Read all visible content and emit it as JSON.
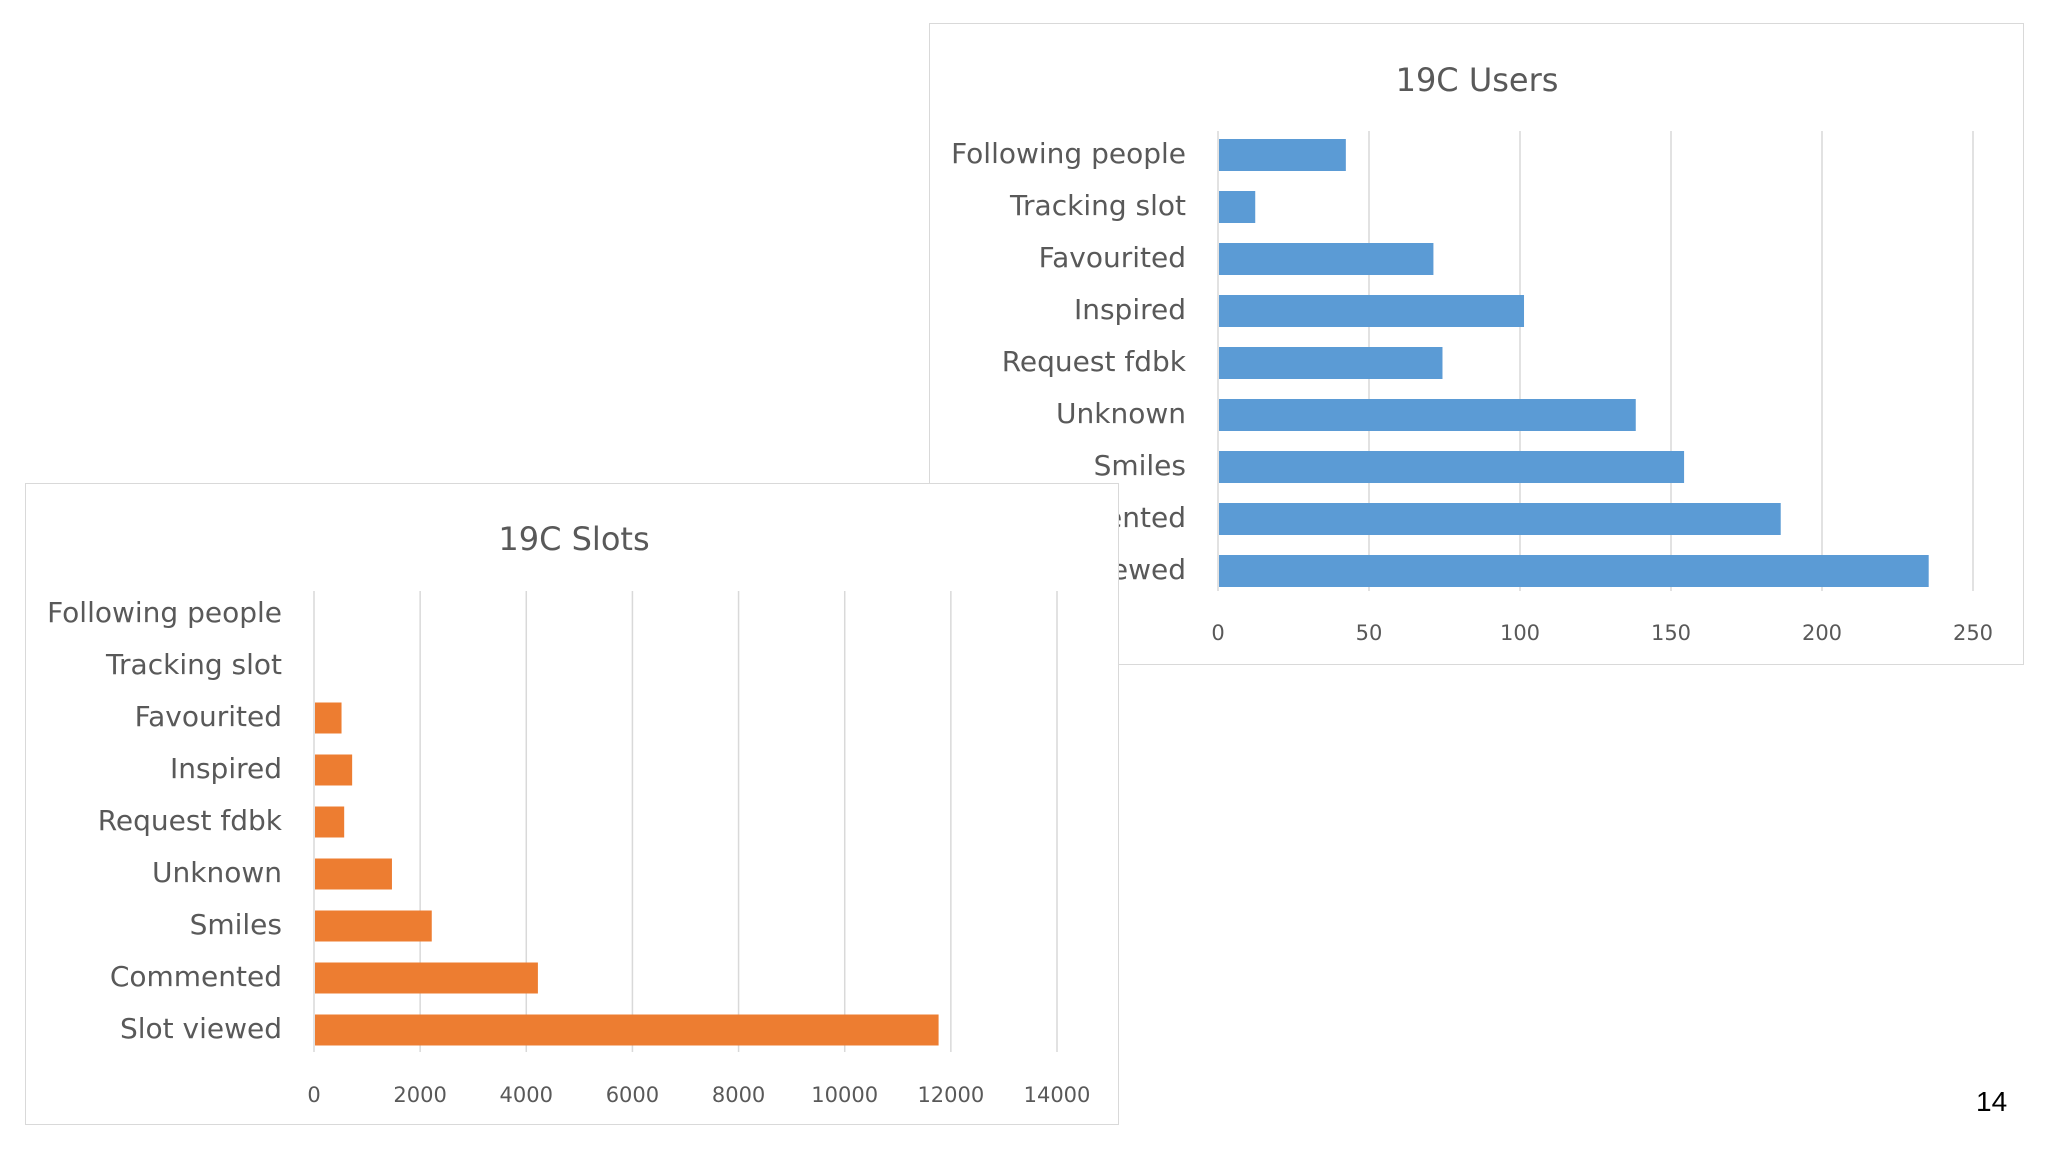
{
  "page_number": "14",
  "chart_data": [
    {
      "id": "slots",
      "type": "bar",
      "orientation": "horizontal",
      "title": "19C Slots",
      "categories": [
        "Following people",
        "Tracking slot",
        "Favourited",
        "Inspired",
        "Request fdbk",
        "Unknown",
        "Smiles",
        "Commented",
        "Slot viewed"
      ],
      "values": [
        0,
        0,
        500,
        700,
        550,
        1450,
        2200,
        4200,
        11750
      ],
      "xlim": [
        0,
        14000
      ],
      "xticks": [
        0,
        2000,
        4000,
        6000,
        8000,
        10000,
        12000,
        14000
      ],
      "grid": "vertical",
      "color": "#ED7D31"
    },
    {
      "id": "users",
      "type": "bar",
      "orientation": "horizontal",
      "title": "19C Users",
      "categories": [
        "Following people",
        "Tracking slot",
        "Favourited",
        "Inspired",
        "Request fdbk",
        "Unknown",
        "Smiles",
        "Commented",
        "Slot viewed"
      ],
      "values": [
        42,
        12,
        71,
        101,
        74,
        138,
        154,
        186,
        235
      ],
      "xlim": [
        0,
        250
      ],
      "xticks": [
        0,
        50,
        100,
        150,
        200,
        250
      ],
      "grid": "vertical",
      "color": "#5B9BD5"
    }
  ]
}
